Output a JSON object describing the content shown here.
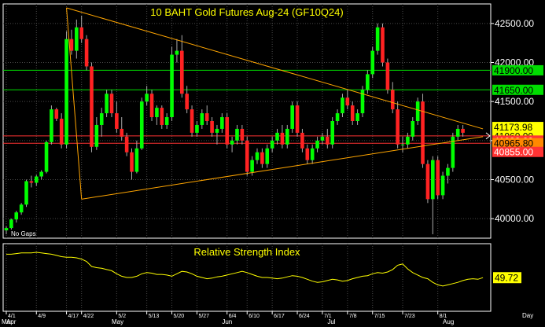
{
  "chart_data": [
    {
      "type": "candlestick",
      "title": "10  BAHT  Gold Futures Aug-24  (GF10Q24)",
      "ylim": [
        39750,
        42750
      ],
      "yticks": [
        40000,
        40500,
        41000,
        41500,
        42000,
        42500
      ],
      "ytick_labels": [
        "40000.00",
        "40500.00",
        "41000.00",
        "41500.00",
        "42000.00",
        "42500.00"
      ],
      "note": "No Gaps",
      "x_day_labels": [
        "4/1",
        "4/9",
        "4/17",
        "4/22",
        "5/2",
        "5/13",
        "5/20",
        "5/27",
        "6/4",
        "6/10",
        "6/17",
        "6/24",
        "7/1",
        "7/8",
        "7/15",
        "7/23",
        "8/1"
      ],
      "x_day_index": [
        0,
        6,
        12,
        15,
        22,
        28,
        33,
        38,
        44,
        48,
        53,
        58,
        63,
        68,
        73,
        79,
        86
      ],
      "x_month_labels": [
        "Mar",
        "Apr",
        "May",
        "Jun",
        "Jul",
        "Aug"
      ],
      "x_month_index": [
        -2,
        0,
        21,
        43,
        64,
        87
      ],
      "x_right_label": "Day",
      "candles": [
        [
          39850,
          39900,
          39800,
          39880
        ],
        [
          39880,
          40000,
          39860,
          39990
        ],
        [
          39990,
          40100,
          39950,
          40080
        ],
        [
          40080,
          40200,
          40050,
          40180
        ],
        [
          40180,
          40500,
          40150,
          40480
        ],
        [
          40480,
          40550,
          40400,
          40460
        ],
        [
          40460,
          40560,
          40420,
          40540
        ],
        [
          40540,
          40620,
          40500,
          40600
        ],
        [
          40600,
          41000,
          40580,
          40980
        ],
        [
          40980,
          41450,
          40950,
          41400
        ],
        [
          41400,
          41420,
          41250,
          41280
        ],
        [
          41280,
          41350,
          40900,
          40950
        ],
        [
          40950,
          42400,
          40900,
          42300
        ],
        [
          42300,
          42420,
          42100,
          42150
        ],
        [
          42150,
          42550,
          42050,
          42450
        ],
        [
          42450,
          42600,
          42250,
          42300
        ],
        [
          42300,
          42350,
          41900,
          41950
        ],
        [
          41950,
          42000,
          40850,
          40920
        ],
        [
          40920,
          41300,
          40880,
          41200
        ],
        [
          41200,
          41420,
          41050,
          41350
        ],
        [
          41350,
          41650,
          41300,
          41600
        ],
        [
          41600,
          41650,
          41300,
          41350
        ],
        [
          41350,
          41500,
          41100,
          41150
        ],
        [
          41150,
          41300,
          41000,
          41050
        ],
        [
          41050,
          41100,
          40800,
          40850
        ],
        [
          40850,
          40900,
          40500,
          40600
        ],
        [
          40600,
          41000,
          40580,
          40900
        ],
        [
          40900,
          41550,
          40880,
          41500
        ],
        [
          41500,
          41700,
          41450,
          41600
        ],
        [
          41600,
          41650,
          41250,
          41300
        ],
        [
          41300,
          41450,
          41200,
          41420
        ],
        [
          41420,
          41450,
          41150,
          41200
        ],
        [
          41200,
          41350,
          41150,
          41300
        ],
        [
          41300,
          42200,
          41250,
          42100
        ],
        [
          42100,
          42300,
          42000,
          42150
        ],
        [
          42150,
          42350,
          41550,
          41600
        ],
        [
          41600,
          41700,
          41350,
          41400
        ],
        [
          41400,
          41450,
          41050,
          41100
        ],
        [
          41100,
          41250,
          41050,
          41200
        ],
        [
          41200,
          41400,
          41150,
          41350
        ],
        [
          41350,
          41450,
          41200,
          41250
        ],
        [
          41250,
          41300,
          41050,
          41100
        ],
        [
          41100,
          41200,
          40950,
          41150
        ],
        [
          41150,
          41350,
          41100,
          41300
        ],
        [
          41300,
          41350,
          40900,
          40950
        ],
        [
          40950,
          41050,
          40850,
          41000
        ],
        [
          41000,
          41200,
          40950,
          41150
        ],
        [
          41150,
          41200,
          40950,
          41000
        ],
        [
          41000,
          41050,
          40550,
          40600
        ],
        [
          40600,
          40800,
          40550,
          40750
        ],
        [
          40750,
          40900,
          40700,
          40850
        ],
        [
          40850,
          40900,
          40650,
          40700
        ],
        [
          40700,
          40950,
          40650,
          40900
        ],
        [
          40900,
          41050,
          40850,
          41000
        ],
        [
          41000,
          41150,
          40950,
          41100
        ],
        [
          41100,
          41200,
          40900,
          40950
        ],
        [
          40950,
          41200,
          40900,
          41150
        ],
        [
          41150,
          41500,
          41100,
          41450
        ],
        [
          41450,
          41500,
          41050,
          41100
        ],
        [
          41100,
          41150,
          40850,
          40900
        ],
        [
          40900,
          40950,
          40700,
          40750
        ],
        [
          40750,
          40950,
          40700,
          40900
        ],
        [
          40900,
          41050,
          40850,
          41000
        ],
        [
          41000,
          41100,
          40950,
          41050
        ],
        [
          41050,
          41150,
          40900,
          40950
        ],
        [
          40950,
          41300,
          40900,
          41250
        ],
        [
          41250,
          41400,
          41200,
          41350
        ],
        [
          41350,
          41600,
          41300,
          41550
        ],
        [
          41550,
          41650,
          41400,
          41450
        ],
        [
          41450,
          41500,
          41200,
          41250
        ],
        [
          41250,
          41400,
          41200,
          41350
        ],
        [
          41350,
          41700,
          41300,
          41650
        ],
        [
          41650,
          41900,
          41600,
          41850
        ],
        [
          41850,
          42200,
          41800,
          42150
        ],
        [
          42150,
          42500,
          42100,
          42450
        ],
        [
          42450,
          42500,
          41950,
          42000
        ],
        [
          42000,
          42050,
          41600,
          41650
        ],
        [
          41650,
          41750,
          41350,
          41400
        ],
        [
          41400,
          41500,
          40900,
          40950
        ],
        [
          40950,
          41050,
          40850,
          40950
        ],
        [
          40950,
          41100,
          40900,
          41050
        ],
        [
          41050,
          41300,
          41000,
          41250
        ],
        [
          41250,
          41550,
          41200,
          41500
        ],
        [
          41500,
          41600,
          40650,
          40700
        ],
        [
          40700,
          40750,
          40200,
          40250
        ],
        [
          40250,
          40800,
          39800,
          40750
        ],
        [
          40750,
          40800,
          40250,
          40300
        ],
        [
          40300,
          40600,
          40250,
          40550
        ],
        [
          40550,
          40700,
          40450,
          40650
        ],
        [
          40650,
          41100,
          40600,
          41050
        ],
        [
          41050,
          41200,
          41000,
          41150
        ],
        [
          41150,
          41200,
          41050,
          41100
        ]
      ],
      "lines": [
        {
          "name": "trend-line-upper",
          "color": "#ffa500",
          "points": [
            [
              12,
              42700
            ],
            [
              95,
              41150
            ]
          ]
        },
        {
          "name": "trend-line-lower",
          "color": "#ffa500",
          "points": [
            [
              15,
              40250
            ],
            [
              95,
              41050
            ]
          ]
        },
        {
          "name": "trend-line-vertical",
          "color": "#ffa500",
          "points": [
            [
              12,
              42700
            ],
            [
              15,
              40250
            ]
          ]
        }
      ],
      "hlines": [
        {
          "value": 41900,
          "color": "#00dd00",
          "label": "41900.00",
          "label_bg": "#00dd00",
          "label_fg": "#000000"
        },
        {
          "value": 41650,
          "color": "#00dd00",
          "label": "41650.00",
          "label_bg": "#00dd00",
          "label_fg": "#000000"
        },
        {
          "value": 41173.98,
          "color": null,
          "label": "41173.98",
          "label_bg": "#ffff00",
          "label_fg": "#000000"
        },
        {
          "value": 41060,
          "color": "#ff3333",
          "label": "41060.00",
          "label_bg": "#ffff00",
          "label_fg": "#000000"
        },
        {
          "value": 41000,
          "color": null,
          "label": "41000.00",
          "label_bg": "#ff3333",
          "label_fg": "#ffffff"
        },
        {
          "value": 40965.8,
          "color": "#ff3333",
          "label": "40965.80",
          "label_bg": "#ff8800",
          "label_fg": "#000000"
        },
        {
          "value": 40855,
          "color": null,
          "label": "40855.00",
          "label_bg": "#ff3333",
          "label_fg": "#ffffff"
        }
      ],
      "colors": {
        "up": "#00ff00",
        "down": "#ff2222",
        "wick": "#aaaaaa"
      }
    },
    {
      "type": "line",
      "title": "Relative Strength Index",
      "ylim": [
        0,
        100
      ],
      "last_value_label": "49.72",
      "series": [
        {
          "values": [
            88,
            88,
            89,
            90,
            90,
            90,
            91,
            90,
            89,
            88,
            86,
            84,
            83,
            83,
            82,
            80,
            76,
            68,
            66,
            65,
            63,
            61,
            56,
            52,
            50,
            50,
            52,
            56,
            58,
            57,
            55,
            55,
            54,
            52,
            56,
            60,
            59,
            56,
            52,
            50,
            48,
            49,
            51,
            52,
            54,
            56,
            58,
            60,
            58,
            55,
            52,
            50,
            50,
            49,
            48,
            49,
            51,
            53,
            52,
            50,
            47,
            44,
            42,
            43,
            45,
            47,
            46,
            44,
            45,
            48,
            50,
            52,
            53,
            56,
            58,
            57,
            59,
            63,
            70,
            72,
            64,
            58,
            54,
            50,
            48,
            42,
            38,
            36,
            38,
            40,
            42,
            45,
            47,
            48,
            47,
            49.72
          ]
        }
      ]
    }
  ]
}
